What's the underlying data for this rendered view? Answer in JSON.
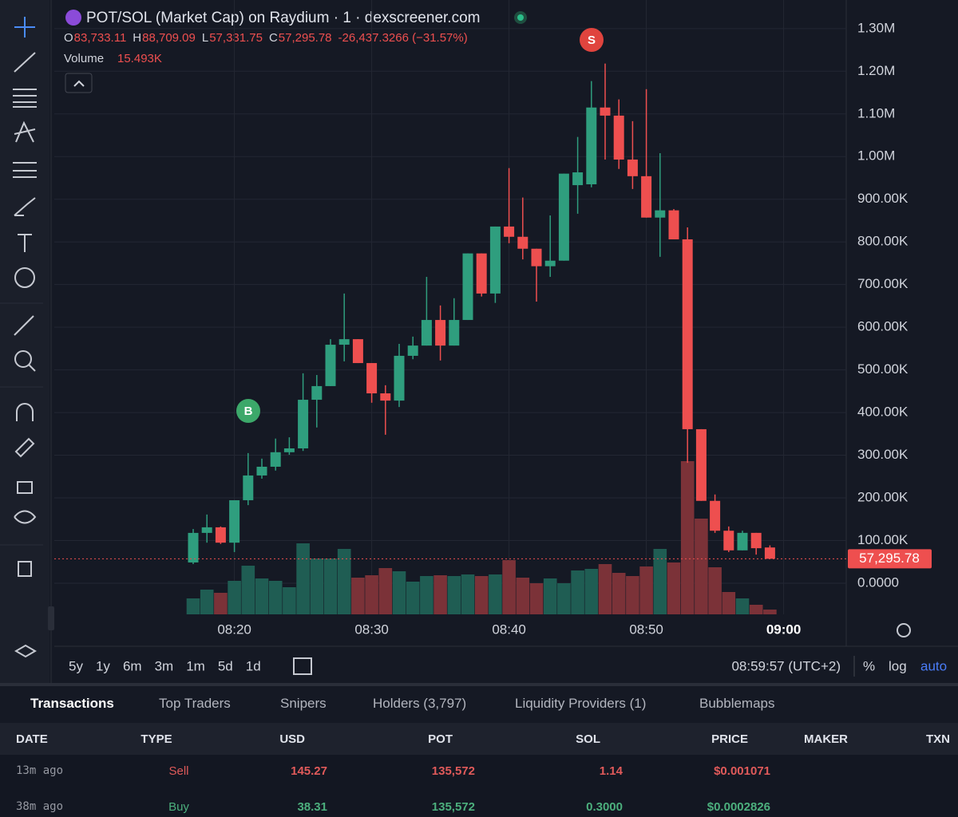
{
  "header": {
    "title": "POT/SOL (Market Cap) on Raydium · 1 · dexscreener.com",
    "ohlc": [
      {
        "key": "O",
        "value": "83,733.11"
      },
      {
        "key": "H",
        "value": "88,709.09"
      },
      {
        "key": "L",
        "value": "57,331.75"
      },
      {
        "key": "C",
        "value": "57,295.78"
      }
    ],
    "change": "-26,437.3266 (−31.57%)",
    "volume_label": "Volume",
    "volume_value": "15.493K"
  },
  "chart_data": {
    "type": "candlestick",
    "categories": [
      null,
      null,
      null,
      "08:20",
      null,
      null,
      null,
      null,
      null,
      null,
      null,
      null,
      null,
      "08:30",
      null,
      null,
      null,
      null,
      null,
      null,
      null,
      null,
      null,
      "08:40",
      null,
      null,
      null,
      null,
      null,
      null,
      null,
      null,
      null,
      "08:50",
      null,
      null,
      null,
      null,
      null,
      null,
      null,
      null,
      null,
      "09:00"
    ],
    "open": [
      48600,
      117900,
      131000,
      95000,
      194500,
      252500,
      273000,
      307000,
      316000,
      430000,
      462000,
      559000,
      572000,
      516000,
      445000,
      428000,
      533000,
      557000,
      617000,
      557000,
      617000,
      773000,
      679000,
      836000,
      812000,
      784000,
      743000,
      756000,
      933000,
      935000,
      1115000,
      1096000,
      993000,
      954000,
      857000,
      874000,
      806000,
      361000,
      193000,
      123000,
      77000,
      118000,
      83733.11,
      null
    ],
    "high": [
      127000,
      161000,
      133000,
      194500,
      305000,
      292000,
      339000,
      342000,
      492000,
      488000,
      572000,
      679000,
      572000,
      516000,
      464000,
      561000,
      578000,
      718000,
      651000,
      668000,
      773000,
      773000,
      836000,
      973000,
      904000,
      784000,
      862000,
      960000,
      1046000,
      1177000,
      1218000,
      1134000,
      1083000,
      1158000,
      1008000,
      877000,
      834000,
      361000,
      208000,
      133000,
      123000,
      118000,
      88709.09,
      null
    ],
    "low": [
      44900,
      95000,
      92000,
      73000,
      183000,
      245000,
      264000,
      301000,
      310000,
      365000,
      462000,
      520000,
      516000,
      423000,
      348000,
      413000,
      525000,
      557000,
      522000,
      557000,
      617000,
      672000,
      657000,
      797000,
      759000,
      660000,
      718000,
      756000,
      866000,
      928000,
      993000,
      971000,
      924000,
      857000,
      765000,
      806000,
      282000,
      193000,
      118000,
      73000,
      77000,
      67000,
      57331.75,
      null
    ],
    "close": [
      117900,
      131000,
      95000,
      194500,
      252500,
      273000,
      307000,
      316000,
      430000,
      462000,
      559000,
      572000,
      516000,
      445000,
      428000,
      533000,
      557000,
      617000,
      557000,
      617000,
      773000,
      679000,
      836000,
      812000,
      784000,
      743000,
      756000,
      960000,
      963000,
      1115000,
      1096000,
      993000,
      954000,
      857000,
      874000,
      806000,
      361000,
      193000,
      123000,
      77000,
      118000,
      82000,
      57295.78,
      null
    ],
    "volume": [
      51640,
      80042,
      69714,
      108444,
      157502,
      116190,
      108444,
      87788,
      229798,
      180740,
      180740,
      211724,
      118772,
      126518,
      149756,
      139428,
      105862,
      123936,
      126518,
      123936,
      129100,
      123936,
      129100,
      175576,
      118772,
      100698,
      116190,
      100698,
      142010,
      147174,
      162666,
      134264,
      123936,
      154920,
      211724,
      167830,
      495744,
      309840,
      152338,
      72296,
      51640,
      30984,
      15493,
      null
    ],
    "ylim": [
      -73000,
      1367000
    ],
    "yticks": [
      {
        "value": 0,
        "label": "0.0000"
      },
      {
        "value": 100000,
        "label": "100.00K"
      },
      {
        "value": 200000,
        "label": "200.00K"
      },
      {
        "value": 300000,
        "label": "300.00K"
      },
      {
        "value": 400000,
        "label": "400.00K"
      },
      {
        "value": 500000,
        "label": "500.00K"
      },
      {
        "value": 600000,
        "label": "600.00K"
      },
      {
        "value": 700000,
        "label": "700.00K"
      },
      {
        "value": 800000,
        "label": "800.00K"
      },
      {
        "value": 900000,
        "label": "900.00K"
      },
      {
        "value": 1000000,
        "label": "1.00M"
      },
      {
        "value": 1100000,
        "label": "1.10M"
      },
      {
        "value": 1200000,
        "label": "1.20M"
      },
      {
        "value": 1300000,
        "label": "1.30M"
      }
    ],
    "volume_ylim": [
      0,
      1988000
    ],
    "last_price": {
      "value": 57295.78,
      "label": "57,295.78"
    },
    "up_color": "#2f9e7e",
    "down_color": "#ee4f4f",
    "up_volume_color": "#1f5d53",
    "down_volume_color": "#7b3238",
    "grid": true,
    "markers": [
      {
        "label": "B",
        "color": "#3ca86a"
      },
      {
        "label": "S",
        "color": "#e0443e"
      }
    ]
  },
  "bottom_bar": {
    "ranges": [
      "5y",
      "1y",
      "6m",
      "3m",
      "1m",
      "5d",
      "1d"
    ],
    "clock": "08:59:57 (UTC+2)",
    "percent": "%",
    "log": "log",
    "auto": "auto"
  },
  "tabs": [
    "Transactions",
    "Top Traders",
    "Snipers",
    "Holders (3,797)",
    "Liquidity Providers (1)",
    "Bubblemaps"
  ],
  "table": {
    "columns": [
      "DATE",
      "TYPE",
      "USD",
      "POT",
      "SOL",
      "PRICE",
      "MAKER",
      "TXN"
    ],
    "rows": [
      [
        "13m ago",
        "Sell",
        "145.27",
        "135,572",
        "1.14",
        "$0.001071"
      ],
      [
        "38m ago",
        "Buy",
        "38.31",
        "135,572",
        "0.3000",
        "$0.0002826"
      ]
    ]
  }
}
